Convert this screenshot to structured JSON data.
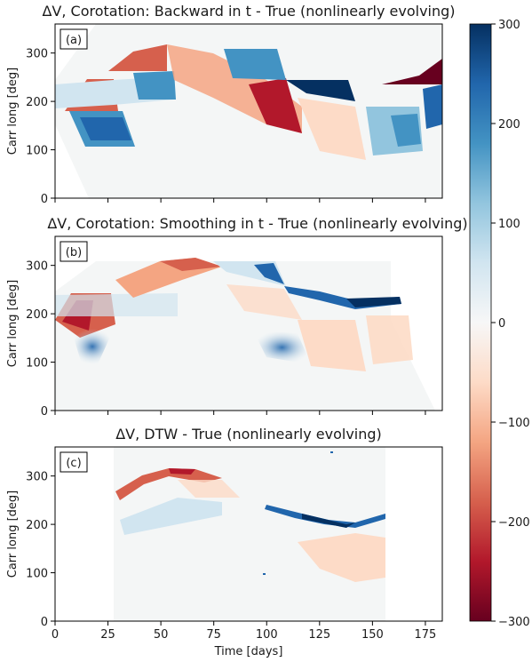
{
  "figure": {
    "xlabel": "Time [days]",
    "shared_x_ticks": [
      "0",
      "25",
      "50",
      "75",
      "100",
      "125",
      "150",
      "175"
    ],
    "colorbar": {
      "colormap": "RdBu_r (red = negative, blue = positive)",
      "range": [
        -300,
        300
      ],
      "ticks": [
        "300",
        "200",
        "100",
        "0",
        "−100",
        "−200",
        "−300"
      ],
      "colors": [
        "#67001f",
        "#b2182b",
        "#d6604d",
        "#f4a582",
        "#fddbc7",
        "#f7f7f7",
        "#d1e5f0",
        "#92c5de",
        "#4393c3",
        "#2166ac",
        "#053061"
      ]
    }
  },
  "chart_data": [
    {
      "type": "heatmap",
      "tag": "(a)",
      "title": "ΔV, Corotation: Backward in t - True (nonlinearly evolving)",
      "xlabel": "",
      "ylabel": "Carr long [deg]",
      "xlim": [
        0,
        183
      ],
      "ylim": [
        0,
        360
      ],
      "y_ticks": [
        "0",
        "100",
        "200",
        "300"
      ],
      "x_ticks": [
        0,
        25,
        50,
        75,
        100,
        125,
        150,
        175
      ],
      "features": [
        {
          "x": [
            16,
            27
          ],
          "y": [
            180,
            240
          ],
          "value": -250
        },
        {
          "x": [
            27,
            41
          ],
          "y": [
            240,
            300
          ],
          "value": -220
        },
        {
          "x": [
            33,
            40
          ],
          "y": [
            180,
            245
          ],
          "value": 150
        },
        {
          "x": [
            10,
            35
          ],
          "y": [
            90,
            180
          ],
          "value": 220
        },
        {
          "x": [
            90,
            105
          ],
          "y": [
            150,
            240
          ],
          "value": -220
        },
        {
          "x": [
            103,
            118
          ],
          "y": [
            190,
            240
          ],
          "value": 280
        },
        {
          "x": [
            160,
            183
          ],
          "y": [
            235,
            285
          ],
          "value": -260
        },
        {
          "x": [
            163,
            183
          ],
          "y": [
            130,
            210
          ],
          "value": 200
        }
      ]
    },
    {
      "type": "heatmap",
      "tag": "(b)",
      "title": "ΔV, Corotation: Smoothing in t - True (nonlinearly evolving)",
      "xlabel": "",
      "ylabel": "Carr long [deg]",
      "xlim": [
        0,
        183
      ],
      "ylim": [
        0,
        360
      ],
      "y_ticks": [
        "0",
        "100",
        "200",
        "300"
      ],
      "x_ticks": [
        0,
        25,
        50,
        75,
        100,
        125,
        150,
        175
      ],
      "features": [
        {
          "x": [
            5,
            25
          ],
          "y": [
            170,
            240
          ],
          "value": -200
        },
        {
          "x": [
            50,
            75
          ],
          "y": [
            285,
            315
          ],
          "value": -230
        },
        {
          "x": [
            95,
            110
          ],
          "y": [
            250,
            300
          ],
          "value": 250
        },
        {
          "x": [
            110,
            160
          ],
          "y": [
            200,
            235
          ],
          "value": 240
        },
        {
          "x": [
            120,
            170
          ],
          "y": [
            130,
            190
          ],
          "value": -70
        }
      ]
    },
    {
      "type": "heatmap",
      "tag": "(c)",
      "title": "ΔV, DTW - True (nonlinearly evolving)",
      "xlabel": "Time [days]",
      "ylabel": "Carr long [deg]",
      "xlim": [
        0,
        183
      ],
      "ylim": [
        0,
        360
      ],
      "y_ticks": [
        "0",
        "100",
        "200",
        "300"
      ],
      "x_ticks": [
        0,
        25,
        50,
        75,
        100,
        125,
        150,
        175
      ],
      "features": [
        {
          "x": [
            28,
            60
          ],
          "y": [
            265,
            315
          ],
          "value": -210
        },
        {
          "x": [
            110,
            155
          ],
          "y": [
            200,
            245
          ],
          "value": 270
        },
        {
          "x": [
            120,
            155
          ],
          "y": [
            85,
            190
          ],
          "value": -70
        }
      ]
    }
  ]
}
